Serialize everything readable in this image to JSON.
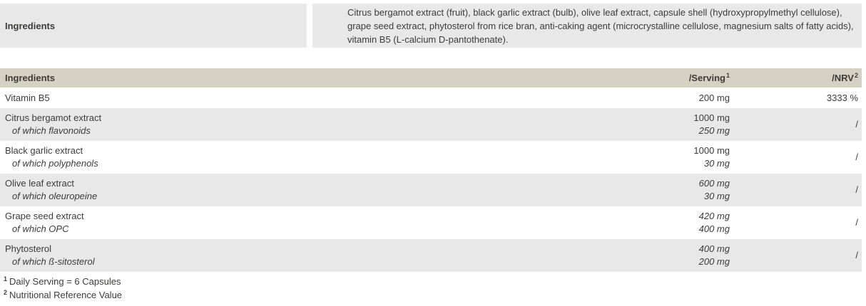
{
  "summary": {
    "label": "Ingredients",
    "text": "Citrus bergamot extract (fruit), black garlic extract (bulb), olive leaf extract, capsule shell (hydroxypropylmethyl cellulose), grape seed extract, phytosterol from rice bran, anti-caking agent (microcrystalline cellulose, magnesium salts of fatty acids), vitamin B5 (L-calcium D-pantothenate)."
  },
  "table": {
    "headers": {
      "ingredient": "Ingredients",
      "serving": "/Serving",
      "serving_sup": "1",
      "nrv": "/NRV",
      "nrv_sup": "2"
    },
    "rows": [
      {
        "name": "Vitamin B5",
        "serving": "200 mg",
        "nrv": "3333 %"
      },
      {
        "name": "Citrus bergamot extract",
        "sub": "of which flavonoids",
        "serving": "1000 mg",
        "serving_sub": "250 mg",
        "nrv": "/"
      },
      {
        "name": "Black garlic extract",
        "sub": "of which polyphenols",
        "serving": "1000 mg",
        "serving_sub": "30 mg",
        "nrv": "/"
      },
      {
        "name": "Olive leaf extract",
        "sub": "of which oleuropeine",
        "serving": "600 mg",
        "serving_sub": "30 mg",
        "nrv": "/"
      },
      {
        "name": "Grape seed extract",
        "sub": "of which OPC",
        "serving": "420 mg",
        "serving_sub": "400 mg",
        "nrv": "/"
      },
      {
        "name": "Phytosterol",
        "sub": "of which ß-sitosterol",
        "serving": "400 mg",
        "serving_sub": "200 mg",
        "nrv": "/"
      }
    ]
  },
  "footnotes": [
    {
      "sup": "1",
      "text": "Daily Serving = 6 Capsules"
    },
    {
      "sup": "2",
      "text": "Nutritional Reference Value"
    }
  ],
  "colors": {
    "header_bg": "#d6d2c3",
    "stripe_bg": "#e8e8e8",
    "text": "#3d3c3b"
  }
}
